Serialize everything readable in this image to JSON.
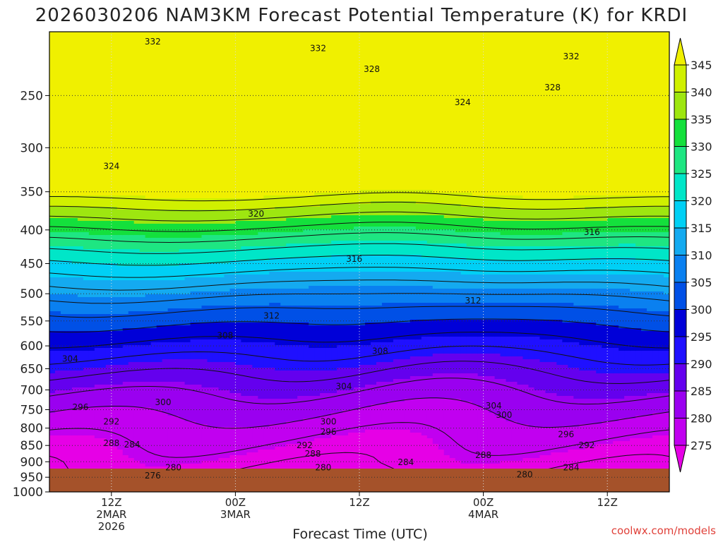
{
  "chart_data": {
    "type": "contour",
    "title": "2026030206 NAM3KM Forecast Potential Temperature (K) for KRDI",
    "xlabel": "Forecast Time (UTC)",
    "ylabel": "",
    "credit": "coolwx.com/models",
    "y_scale": "log",
    "y_inverted": true,
    "ylim": [
      1000,
      200
    ],
    "y_ticks": [
      250,
      300,
      350,
      400,
      450,
      500,
      550,
      600,
      650,
      700,
      750,
      800,
      850,
      900,
      950,
      1000
    ],
    "x_range_hours": [
      0,
      60
    ],
    "x_ticks": [
      {
        "hour": 6,
        "lines": [
          "12Z",
          "2MAR",
          "2026"
        ]
      },
      {
        "hour": 18,
        "lines": [
          "00Z",
          "3MAR"
        ]
      },
      {
        "hour": 30,
        "lines": [
          "12Z"
        ]
      },
      {
        "hour": 42,
        "lines": [
          "00Z",
          "4MAR"
        ]
      },
      {
        "hour": 54,
        "lines": [
          "12Z"
        ]
      }
    ],
    "colorbar": {
      "levels": [
        275,
        280,
        285,
        290,
        295,
        300,
        305,
        310,
        315,
        320,
        325,
        330,
        335,
        340,
        345
      ],
      "colors": [
        "#e600e6",
        "#c100f0",
        "#9a00f0",
        "#6400ee",
        "#1f10ff",
        "#0000d8",
        "#0050e6",
        "#0a80f0",
        "#14aaf0",
        "#00d0f5",
        "#00e6c8",
        "#1ee682",
        "#14e03c",
        "#9ee610",
        "#d0f000",
        "#f0f000"
      ]
    },
    "contour_labels": [
      {
        "value": 332,
        "hour": 10.0,
        "p": 207
      },
      {
        "value": 332,
        "hour": 26.0,
        "p": 212
      },
      {
        "value": 332,
        "hour": 50.5,
        "p": 218
      },
      {
        "value": 328,
        "hour": 31.2,
        "p": 228
      },
      {
        "value": 328,
        "hour": 48.7,
        "p": 243
      },
      {
        "value": 324,
        "hour": 40.0,
        "p": 256
      },
      {
        "value": 324,
        "hour": 6.0,
        "p": 320
      },
      {
        "value": 320,
        "hour": 20.0,
        "p": 378
      },
      {
        "value": 316,
        "hour": 52.5,
        "p": 403
      },
      {
        "value": 316,
        "hour": 29.5,
        "p": 443
      },
      {
        "value": 312,
        "hour": 41.0,
        "p": 512
      },
      {
        "value": 312,
        "hour": 21.5,
        "p": 540
      },
      {
        "value": 308,
        "hour": 17.0,
        "p": 579
      },
      {
        "value": 308,
        "hour": 32.0,
        "p": 611
      },
      {
        "value": 304,
        "hour": 2.0,
        "p": 628
      },
      {
        "value": 304,
        "hour": 28.5,
        "p": 691
      },
      {
        "value": 304,
        "hour": 43.0,
        "p": 740
      },
      {
        "value": 300,
        "hour": 11.0,
        "p": 731
      },
      {
        "value": 300,
        "hour": 27.0,
        "p": 782
      },
      {
        "value": 300,
        "hour": 44.0,
        "p": 764
      },
      {
        "value": 296,
        "hour": 3.0,
        "p": 744
      },
      {
        "value": 296,
        "hour": 27.0,
        "p": 811
      },
      {
        "value": 296,
        "hour": 50.0,
        "p": 818
      },
      {
        "value": 292,
        "hour": 6.0,
        "p": 782
      },
      {
        "value": 292,
        "hour": 24.7,
        "p": 850
      },
      {
        "value": 292,
        "hour": 52.0,
        "p": 850
      },
      {
        "value": 288,
        "hour": 6.0,
        "p": 843
      },
      {
        "value": 288,
        "hour": 25.5,
        "p": 875
      },
      {
        "value": 288,
        "hour": 42.0,
        "p": 880
      },
      {
        "value": 284,
        "hour": 8.0,
        "p": 848
      },
      {
        "value": 284,
        "hour": 34.5,
        "p": 901
      },
      {
        "value": 284,
        "hour": 50.5,
        "p": 918
      },
      {
        "value": 280,
        "hour": 12.0,
        "p": 918
      },
      {
        "value": 280,
        "hour": 26.5,
        "p": 918
      },
      {
        "value": 280,
        "hour": 46.0,
        "p": 941
      },
      {
        "value": 276,
        "hour": 10.0,
        "p": 945
      }
    ]
  }
}
